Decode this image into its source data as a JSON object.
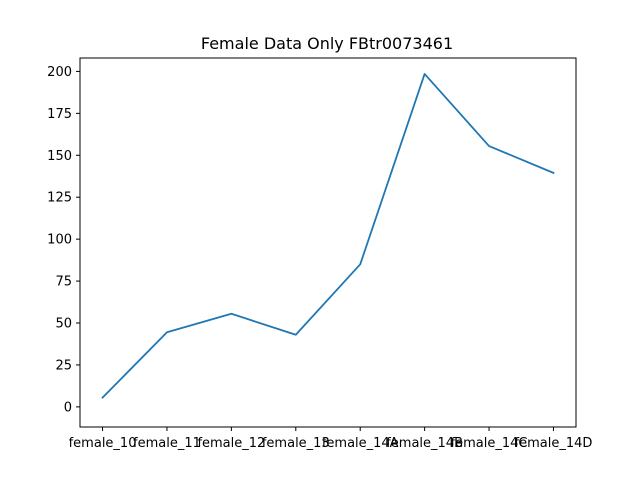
{
  "chart_data": {
    "type": "line",
    "title": "Female Data Only FBtr0073461",
    "xlabel": "",
    "ylabel": "",
    "categories": [
      "female_10",
      "female_11",
      "female_12",
      "female_13",
      "female_14A",
      "female_14B",
      "female_14C",
      "female_14D"
    ],
    "series": [
      {
        "values": [
          5.5,
          44.5,
          55.5,
          43,
          85,
          198.5,
          155.5,
          139.5
        ],
        "color": "#1f77b4"
      }
    ],
    "ylim": [
      -12,
      208
    ],
    "yticks": [
      0,
      25,
      50,
      75,
      100,
      125,
      150,
      175,
      200
    ],
    "grid": false,
    "legend": "none"
  }
}
